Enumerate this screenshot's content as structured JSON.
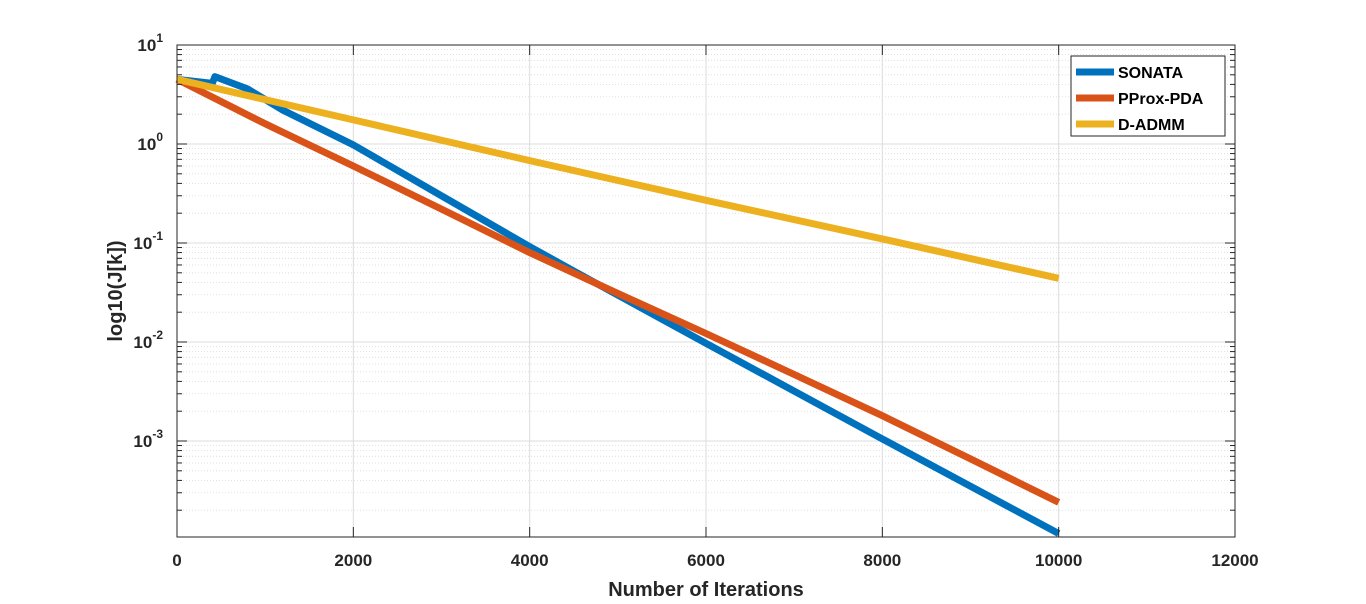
{
  "chart_data": {
    "type": "line",
    "title": "",
    "xlabel": "Number of Iterations",
    "ylabel": "log10(J[k])",
    "xlim": [
      0,
      12000
    ],
    "ylim": [
      0.0001,
      10
    ],
    "yscale": "log",
    "grid": true,
    "minor_grid": true,
    "legend_position": "top-right",
    "x_ticks": [
      0,
      2000,
      4000,
      6000,
      8000,
      10000,
      12000
    ],
    "x_tick_labels": [
      "0",
      "2000",
      "4000",
      "6000",
      "8000",
      "10000",
      "12000"
    ],
    "y_ticks": [
      10,
      1,
      0.1,
      0.01,
      0.001
    ],
    "y_tick_labels": [
      {
        "base": "10",
        "exp": "1"
      },
      {
        "base": "10",
        "exp": "0"
      },
      {
        "base": "10",
        "exp": "-1"
      },
      {
        "base": "10",
        "exp": "-2"
      },
      {
        "base": "10",
        "exp": "-3"
      }
    ],
    "series": [
      {
        "name": "SONATA",
        "color": "#0072BD",
        "x": [
          0,
          400,
          430,
          800,
          1200,
          2000,
          3000,
          4000,
          4500,
          6000,
          8000,
          10000
        ],
        "y": [
          4.5,
          4.1,
          4.8,
          3.6,
          2.2,
          0.98,
          0.3,
          0.092,
          0.052,
          0.0097,
          0.00105,
          0.000116
        ]
      },
      {
        "name": "PProx-PDA",
        "color": "#D95319",
        "x": [
          0,
          1000,
          2000,
          3000,
          4000,
          5000,
          6000,
          7000,
          8000,
          9000,
          10000
        ],
        "y": [
          4.5,
          1.6,
          0.6,
          0.22,
          0.08,
          0.031,
          0.0122,
          0.0047,
          0.0018,
          0.00066,
          0.00024
        ]
      },
      {
        "name": "D-ADMM",
        "color": "#EDB120",
        "x": [
          0,
          2000,
          4000,
          6000,
          8000,
          10000
        ],
        "y": [
          4.5,
          1.75,
          0.68,
          0.27,
          0.11,
          0.044
        ]
      }
    ]
  }
}
